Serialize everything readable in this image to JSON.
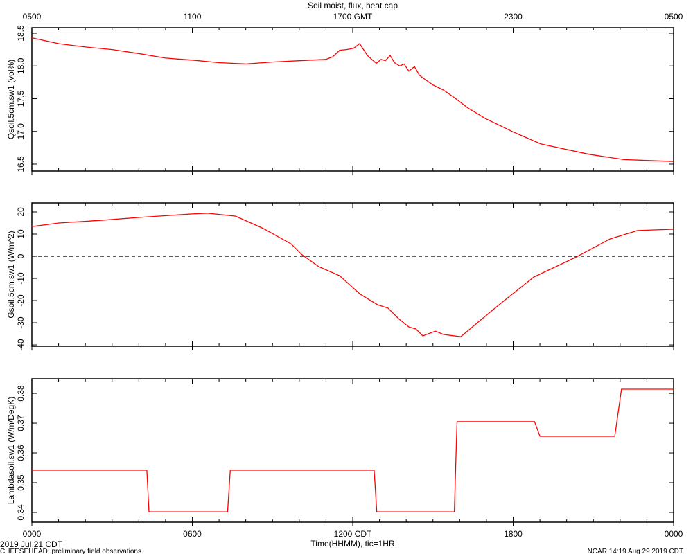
{
  "title": "Soil moist, flux, heat cap",
  "x_axis": {
    "xlim": [
      0,
      24
    ],
    "minor_tick_step": 1,
    "xlabel": "Time(HHMM), tic=1HR",
    "xticks": [
      {
        "value": 0,
        "label": "0000"
      },
      {
        "value": 6,
        "label": "0600"
      },
      {
        "value": 12,
        "label": "1200 CDT"
      },
      {
        "value": 18,
        "label": "1800"
      },
      {
        "value": 24,
        "label": "0000"
      }
    ],
    "x2ticks": [
      {
        "value": 0,
        "label": "0500"
      },
      {
        "value": 6,
        "label": "1100"
      },
      {
        "value": 12,
        "label": "1700 GMT"
      },
      {
        "value": 18,
        "label": "2300"
      },
      {
        "value": 24,
        "label": "0500"
      }
    ]
  },
  "footer": {
    "date": "2019 Jul 21 CDT",
    "project": "CHEESEHEAD: preliminary field observations",
    "credit": "NCAR 14:19 Aug 29 2019 CDT"
  },
  "chart_data": [
    {
      "type": "line",
      "ylabel": "Qsoil.5cm.sw1 (vol%)",
      "color": "#ff0000",
      "ylim": [
        16.394,
        18.585
      ],
      "yticks": [
        16.5,
        {
          "value": 17,
          "label": "17.0"
        },
        17.5,
        {
          "value": 18,
          "label": "18.0"
        },
        18.5
      ],
      "x": [
        0,
        1.01,
        2.0,
        3.01,
        3.99,
        5.0,
        5.99,
        7.0,
        8.01,
        8.99,
        10.0,
        10.99,
        11.25,
        11.51,
        11.77,
        12.03,
        12.26,
        12.55,
        12.88,
        13.06,
        13.22,
        13.4,
        13.56,
        13.76,
        13.92,
        14.1,
        14.31,
        14.49,
        14.72,
        15.0,
        15.4,
        15.79,
        16.3,
        16.95,
        18.01,
        19.03,
        20.84,
        22.14,
        24
      ],
      "values": [
        18.43,
        18.34,
        18.29,
        18.25,
        18.19,
        18.12,
        18.09,
        18.05,
        18.03,
        18.06,
        18.08,
        18.1,
        18.14,
        18.24,
        18.25,
        18.27,
        18.34,
        18.16,
        18.04,
        18.1,
        18.08,
        18.16,
        18.05,
        18.0,
        18.03,
        17.92,
        17.99,
        17.86,
        17.79,
        17.71,
        17.63,
        17.52,
        17.36,
        17.2,
        16.99,
        16.81,
        16.65,
        16.57,
        16.54
      ]
    },
    {
      "type": "line",
      "ylabel": "Gsoil.5cm.sw1 (W/m^2)",
      "color": "#ff0000",
      "ylim": [
        -40.6,
        24.06
      ],
      "yticks": [
        -40,
        -30,
        -20,
        -10,
        0,
        10,
        20
      ],
      "reference_line": 0,
      "x": [
        0,
        1.01,
        2.7,
        3.99,
        5.99,
        6.58,
        7.62,
        8.66,
        9.69,
        10.08,
        10.73,
        11.51,
        12.29,
        12.93,
        13.32,
        13.71,
        14.1,
        14.36,
        14.62,
        15.09,
        15.4,
        16.04,
        16.69,
        17.47,
        18.77,
        20.32,
        21.62,
        22.65,
        24
      ],
      "values": [
        13.4,
        15,
        16.3,
        17.5,
        19.1,
        19.4,
        18.1,
        12.5,
        5.6,
        0.9,
        -4.7,
        -8.8,
        -17.2,
        -21.9,
        -23.4,
        -28.1,
        -31.9,
        -32.8,
        -35.9,
        -33.8,
        -35.3,
        -36.3,
        -29.7,
        -21.9,
        -9.4,
        -0.6,
        7.8,
        11.6,
        12.2
      ]
    },
    {
      "type": "line",
      "ylabel": "Lambdasoil.sw1 (W/m/DegK)",
      "color": "#ff0000",
      "ylim": [
        0.33674,
        0.3849
      ],
      "yticks": [
        0.34,
        0.35,
        0.36,
        0.37,
        0.38
      ],
      "x": [
        0,
        4.3,
        4.38,
        7.32,
        7.42,
        12.8,
        12.9,
        15.8,
        15.9,
        18.8,
        19.0,
        21.8,
        22.05,
        24
      ],
      "values": [
        0.3542,
        0.3542,
        0.3402,
        0.3402,
        0.3542,
        0.3542,
        0.3402,
        0.3402,
        0.3705,
        0.3705,
        0.3656,
        0.3656,
        0.3814,
        0.3814
      ]
    }
  ]
}
